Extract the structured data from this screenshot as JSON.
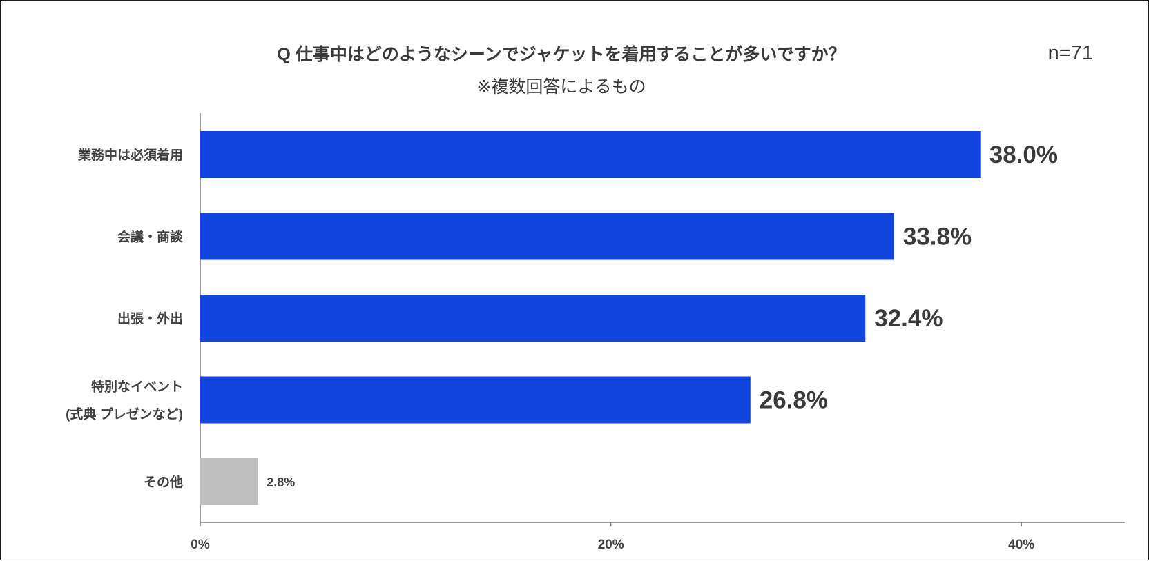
{
  "chart_data": {
    "type": "bar",
    "orientation": "horizontal",
    "title": "Q 仕事中はどのようなシーンでジャケットを着用することが多いですか？",
    "subtitle": "※複数回答によるもの",
    "sample_size": "n=71",
    "categories": [
      [
        "業務中は必須着用"
      ],
      [
        "会議・商談"
      ],
      [
        "出張・外出"
      ],
      [
        "特別なイベント",
        "(式典 プレゼンなど)"
      ],
      [
        "その他"
      ]
    ],
    "values": [
      38.0,
      33.8,
      32.4,
      26.8,
      2.8
    ],
    "value_labels": [
      "38.0%",
      "33.8%",
      "32.4%",
      "26.8%",
      "2.8%"
    ],
    "bar_colors": [
      "#1045dd",
      "#1045dd",
      "#1045dd",
      "#1045dd",
      "#bfbfbf"
    ],
    "x_ticks": [
      0,
      20,
      40
    ],
    "x_tick_labels": [
      "0%",
      "20%",
      "40%"
    ],
    "xlim": [
      0,
      45
    ],
    "xlabel": "",
    "ylabel": "",
    "grid": false
  }
}
